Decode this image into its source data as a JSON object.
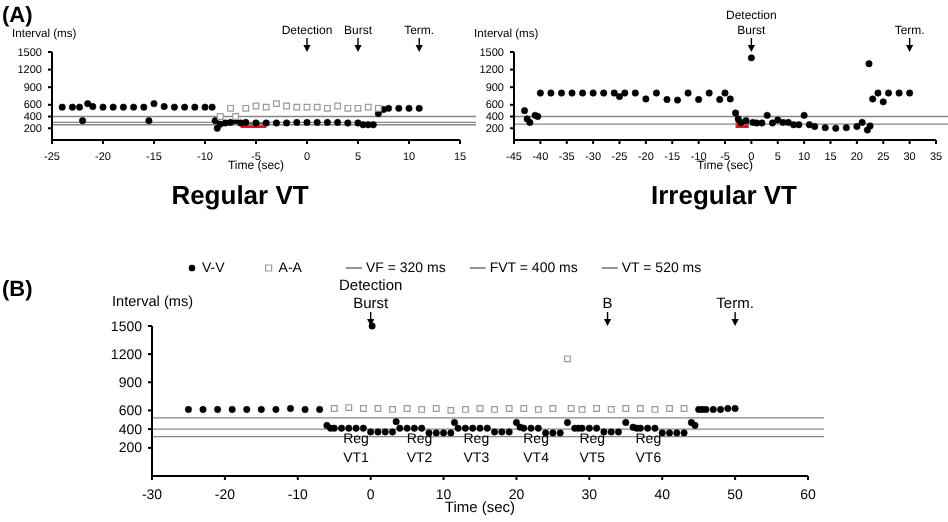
{
  "chart_data": [
    {
      "type": "scatter",
      "title": "Regular VT",
      "xlabel": "Time (sec)",
      "ylabel": "Interval (ms)",
      "xlim": [
        -25,
        15
      ],
      "xticks": [
        -25,
        -20,
        -15,
        -10,
        -5,
        0,
        5,
        10,
        15
      ],
      "ylim": [
        0,
        1500
      ],
      "yticks": [
        200,
        400,
        600,
        900,
        1200,
        1500
      ],
      "grid": false,
      "legend": false,
      "annotations": [
        "(A)",
        {
          "text": "Detection",
          "x": 0,
          "y": 1500
        },
        {
          "text": "Burst",
          "x": 5,
          "y": 1500
        },
        {
          "text": "Term.",
          "x": 11,
          "y": 1500
        }
      ],
      "ref_lines": [
        {
          "axis": "y",
          "value": 400,
          "color": "#888888"
        },
        {
          "axis": "y",
          "value": 300,
          "color": "#888888"
        },
        {
          "axis": "y",
          "value": 260,
          "color": "#888888"
        }
      ],
      "bands": [
        {
          "axis": "x",
          "from": -6.5,
          "to": -4,
          "color": "#e8141c"
        }
      ],
      "series": [
        {
          "color": "#000000",
          "marker": "circle",
          "x": [
            -24,
            -23,
            -22.3,
            -22,
            -21.5,
            -21,
            -20,
            -19,
            -18,
            -17,
            -16,
            -15.5,
            -15,
            -14,
            -13,
            -12,
            -11,
            -10,
            -9.3,
            -9,
            -8.8,
            -8.5,
            -8,
            -7.5,
            -7,
            -6.5,
            -6,
            -5,
            -4,
            -3,
            -2,
            -1,
            0,
            1,
            2,
            3,
            4,
            5,
            5.5,
            6,
            6.5,
            7,
            7.5,
            8,
            9,
            10,
            11
          ],
          "values": [
            560,
            560,
            560,
            330,
            620,
            570,
            560,
            560,
            560,
            560,
            560,
            330,
            620,
            570,
            560,
            560,
            560,
            560,
            560,
            330,
            200,
            270,
            290,
            300,
            330,
            290,
            300,
            290,
            290,
            290,
            290,
            300,
            300,
            300,
            300,
            300,
            290,
            290,
            260,
            260,
            260,
            450,
            520,
            540,
            540,
            540,
            540
          ]
        },
        {
          "color": "#999999",
          "marker": "square",
          "x": [
            -8.5,
            -7.5,
            -7,
            -6,
            -5,
            -4,
            -3,
            -2,
            -1,
            0,
            1,
            2,
            3,
            4,
            5,
            6,
            7
          ],
          "values": [
            400,
            540,
            400,
            540,
            580,
            560,
            620,
            580,
            560,
            560,
            560,
            540,
            580,
            540,
            540,
            560,
            540
          ]
        }
      ]
    },
    {
      "type": "scatter",
      "title": "Irregular VT",
      "xlabel": "Time (sec)",
      "ylabel": "Interval (ms)",
      "xlim": [
        -45,
        35
      ],
      "xticks": [
        -45,
        -40,
        -35,
        -30,
        -25,
        -20,
        -15,
        -10,
        -5,
        0,
        5,
        10,
        15,
        20,
        25,
        30,
        35
      ],
      "ylim": [
        0,
        1500
      ],
      "yticks": [
        200,
        400,
        600,
        900,
        1200,
        1500
      ],
      "grid": false,
      "legend": false,
      "annotations": [
        {
          "text": "Detection",
          "x": 0,
          "y": 1500
        },
        {
          "text": "Burst",
          "x": 0,
          "y": 1500
        },
        {
          "text": "Term.",
          "x": 30,
          "y": 1500
        }
      ],
      "ref_lines": [
        {
          "axis": "y",
          "value": 400,
          "color": "#888888"
        },
        {
          "axis": "y",
          "value": 270,
          "color": "#888888"
        }
      ],
      "bands": [
        {
          "axis": "x",
          "from": -3,
          "to": -0.5,
          "color": "#e8141c"
        }
      ],
      "series": [
        {
          "color": "#000000",
          "marker": "circle",
          "x": [
            -43,
            -42.5,
            -42,
            -41,
            -40.5,
            -40,
            -38,
            -36,
            -34,
            -32,
            -30,
            -28,
            -26,
            -25,
            -24,
            -22,
            -20,
            -18,
            -16,
            -14,
            -12,
            -10,
            -8,
            -6,
            -5,
            -4,
            -3,
            -2.5,
            -2,
            -1,
            0,
            0.3,
            1,
            2,
            3,
            4,
            5,
            6,
            7,
            8,
            9,
            10,
            11,
            12,
            14,
            16,
            18,
            20,
            21,
            22,
            22.3,
            22.5,
            23,
            24,
            25,
            26,
            28,
            30
          ],
          "values": [
            500,
            360,
            300,
            420,
            400,
            800,
            800,
            800,
            800,
            800,
            800,
            800,
            800,
            740,
            800,
            800,
            700,
            800,
            690,
            680,
            800,
            690,
            800,
            690,
            800,
            700,
            460,
            360,
            300,
            330,
            1400,
            300,
            290,
            290,
            420,
            290,
            340,
            300,
            300,
            260,
            260,
            420,
            260,
            230,
            210,
            200,
            210,
            230,
            300,
            170,
            1300,
            240,
            700,
            800,
            650,
            800,
            800,
            800
          ]
        }
      ]
    },
    {
      "type": "scatter",
      "xlabel": "Time (sec)",
      "ylabel": "Interval (ms)",
      "xlim": [
        -30,
        60
      ],
      "xticks": [
        -30,
        -20,
        -10,
        0,
        10,
        20,
        30,
        40,
        50,
        60
      ],
      "ylim": [
        -100,
        1500
      ],
      "yticks": [
        200,
        400,
        600,
        900,
        1200,
        1500
      ],
      "grid": false,
      "legend": "top",
      "annotations": [
        "(B)",
        {
          "text": "Detection",
          "x": 0,
          "y": 1500
        },
        {
          "text": "Burst",
          "x": 0,
          "y": 1500
        },
        {
          "text": "B",
          "x": 32.5,
          "y": 1500
        },
        {
          "text": "Term.",
          "x": 50,
          "y": 1500
        },
        {
          "text": "Reg VT1",
          "x": -2,
          "y": 250
        },
        {
          "text": "Reg VT2",
          "x": 6.7,
          "y": 250
        },
        {
          "text": "Reg VT3",
          "x": 14.5,
          "y": 250
        },
        {
          "text": "Reg VT4",
          "x": 22.7,
          "y": 250
        },
        {
          "text": "Reg VT5",
          "x": 30.4,
          "y": 250
        },
        {
          "text": "Reg VT6",
          "x": 38.1,
          "y": 250
        }
      ],
      "ref_lines": [
        {
          "axis": "y",
          "value": 320,
          "label": "VF = 320 ms",
          "color": "#888888"
        },
        {
          "axis": "y",
          "value": 400,
          "label": "FVT = 400 ms",
          "color": "#888888"
        },
        {
          "axis": "y",
          "value": 520,
          "label": "VT = 520 ms",
          "color": "#888888"
        }
      ],
      "series": [
        {
          "name": "V-V",
          "color": "#000000",
          "marker": "circle",
          "x": [
            -25,
            -23,
            -21,
            -19,
            -17,
            -15,
            -13,
            -11,
            -9,
            -7,
            -6,
            -5.5,
            -5,
            -4,
            -3,
            -2,
            -1,
            0,
            0.2,
            1,
            2,
            3,
            3.5,
            4,
            5,
            6,
            7,
            8,
            9,
            10,
            11,
            11.5,
            12,
            13,
            14,
            15,
            16,
            17,
            18,
            19,
            20,
            20.5,
            21,
            22,
            23,
            24,
            25,
            26,
            27,
            28,
            28.5,
            29,
            30,
            31,
            32,
            33,
            34,
            35,
            36,
            36.5,
            37,
            38,
            39,
            40,
            41,
            42,
            43,
            44,
            44.5,
            45,
            45.5,
            46,
            47,
            48,
            49,
            50
          ],
          "values": [
            610,
            610,
            610,
            610,
            610,
            610,
            610,
            620,
            610,
            610,
            440,
            410,
            410,
            410,
            410,
            410,
            410,
            370,
            1500,
            370,
            370,
            370,
            480,
            410,
            410,
            410,
            410,
            360,
            360,
            360,
            360,
            470,
            410,
            410,
            410,
            410,
            410,
            370,
            370,
            370,
            470,
            420,
            410,
            410,
            410,
            360,
            360,
            360,
            470,
            410,
            410,
            410,
            410,
            410,
            370,
            370,
            370,
            470,
            420,
            410,
            410,
            410,
            410,
            360,
            360,
            360,
            360,
            470,
            440,
            610,
            610,
            610,
            610,
            610,
            620,
            620
          ]
        },
        {
          "name": "A-A",
          "color": "#999999",
          "marker": "square",
          "x": [
            -5,
            -3,
            -1,
            1,
            3,
            5,
            7,
            9,
            11,
            13,
            15,
            17,
            19,
            21,
            23,
            25,
            27,
            27.5,
            29,
            31,
            33,
            35,
            37,
            39,
            41,
            43
          ],
          "values": [
            620,
            630,
            620,
            620,
            610,
            620,
            610,
            620,
            600,
            610,
            620,
            610,
            620,
            620,
            610,
            620,
            1150,
            620,
            610,
            620,
            610,
            620,
            620,
            610,
            620,
            620
          ]
        }
      ]
    }
  ]
}
